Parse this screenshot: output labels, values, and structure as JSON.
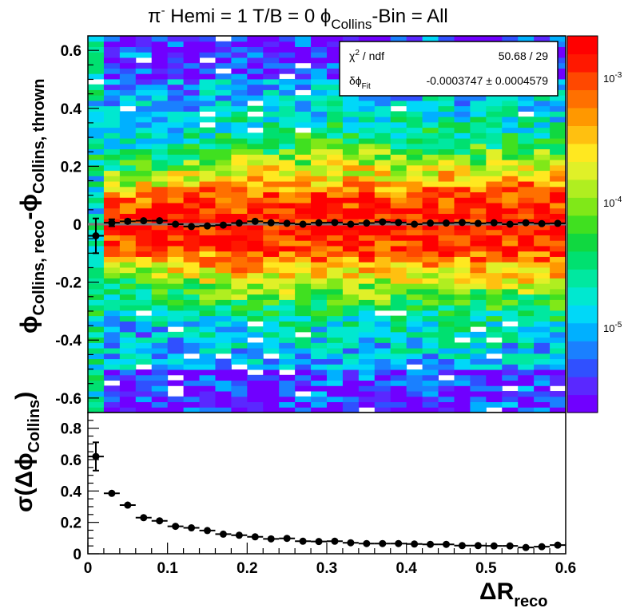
{
  "title": {
    "particle": "π",
    "charge": "-",
    "rest": " Hemi = 1 T/B = 0 ",
    "phi": "ϕ",
    "phi_sub": "Collins",
    "tail": "-Bin = All"
  },
  "stats_box": {
    "row1_label_main": "χ",
    "row1_label_sup": "2",
    "row1_label_rest": " / ndf",
    "row1_value": "50.68 / 29",
    "row2_label_main": "δϕ",
    "row2_label_sub": "Fit",
    "row2_value": "-0.0003747 ± 0.0004579"
  },
  "top_axis": {
    "y_main": "ϕ",
    "y_sub1": "Collins, reco",
    "y_mid": "-ϕ",
    "y_sub2": "Collins, thrown",
    "y_ticks": [
      "-0.6",
      "-0.4",
      "-0.2",
      "0",
      "0.2",
      "0.4",
      "0.6"
    ]
  },
  "bottom_axis": {
    "y_label_a": "σ(Δϕ",
    "y_label_sub": "Collins",
    "y_label_b": ")",
    "y_ticks": [
      "0",
      "0.2",
      "0.4",
      "0.6",
      "0.8"
    ],
    "x_ticks": [
      "0",
      "0.1",
      "0.2",
      "0.3",
      "0.4",
      "0.5",
      "0.6"
    ],
    "x_label_main": "ΔR",
    "x_label_sub": "reco"
  },
  "colorbar": {
    "scale": "log",
    "labels": [
      {
        "base": "10",
        "exp": "-3",
        "value": 0.001
      },
      {
        "base": "10",
        "exp": "-4",
        "value": 0.0001
      },
      {
        "base": "10",
        "exp": "-5",
        "value": 1e-05
      }
    ],
    "colors": [
      "#7000ff",
      "#5a28ff",
      "#3050ff",
      "#1a80ff",
      "#00b0ff",
      "#00d8f8",
      "#00e8d0",
      "#00e8a0",
      "#00e070",
      "#10d840",
      "#40e020",
      "#80e818",
      "#b0ee20",
      "#e0f028",
      "#ffe820",
      "#ffc010",
      "#ff9800",
      "#ff7000",
      "#ff4800",
      "#ff1800",
      "#ff0000"
    ]
  },
  "chart_data": [
    {
      "type": "heatmap",
      "x_range": [
        0,
        0.6
      ],
      "y_range": [
        -0.65,
        0.65
      ],
      "z_scale": "log",
      "fit_line_y": 0,
      "profile_points": {
        "x": [
          0.01,
          0.03,
          0.05,
          0.07,
          0.09,
          0.11,
          0.13,
          0.15,
          0.17,
          0.19,
          0.21,
          0.23,
          0.25,
          0.27,
          0.29,
          0.31,
          0.33,
          0.35,
          0.37,
          0.39,
          0.41,
          0.43,
          0.45,
          0.47,
          0.49,
          0.51,
          0.53,
          0.55,
          0.57,
          0.59
        ],
        "y": [
          -0.04,
          0.005,
          0.01,
          0.012,
          0.012,
          0.0,
          -0.008,
          -0.006,
          -0.003,
          0.004,
          0.01,
          0.005,
          0.003,
          0.0,
          0.005,
          0.006,
          0.0,
          0.004,
          0.008,
          0.006,
          0.0,
          0.004,
          0.004,
          0.006,
          0.003,
          0.005,
          0.0,
          0.005,
          0.002,
          0.003
        ],
        "y_err": [
          0.06,
          0.012,
          0.006,
          0.004,
          0.004,
          0.003,
          0.003,
          0.003,
          0.003,
          0.003,
          0.003,
          0.003,
          0.003,
          0.003,
          0.003,
          0.003,
          0.003,
          0.003,
          0.003,
          0.003,
          0.003,
          0.003,
          0.003,
          0.003,
          0.003,
          0.003,
          0.003,
          0.003,
          0.003,
          0.003
        ],
        "x_err": 0.01
      }
    },
    {
      "type": "scatter",
      "x_range": [
        0,
        0.6
      ],
      "y_range": [
        0,
        0.9
      ],
      "points": {
        "x": [
          0.01,
          0.03,
          0.05,
          0.07,
          0.09,
          0.11,
          0.13,
          0.15,
          0.17,
          0.19,
          0.21,
          0.23,
          0.25,
          0.27,
          0.29,
          0.31,
          0.33,
          0.35,
          0.37,
          0.39,
          0.41,
          0.43,
          0.45,
          0.47,
          0.49,
          0.51,
          0.53,
          0.55,
          0.57,
          0.59
        ],
        "y": [
          0.62,
          0.385,
          0.31,
          0.23,
          0.21,
          0.175,
          0.165,
          0.148,
          0.125,
          0.118,
          0.108,
          0.095,
          0.098,
          0.08,
          0.078,
          0.08,
          0.07,
          0.065,
          0.065,
          0.065,
          0.062,
          0.06,
          0.06,
          0.052,
          0.052,
          0.05,
          0.05,
          0.04,
          0.045,
          0.055
        ],
        "y_err": [
          0.09,
          0.015,
          0.012,
          0.01,
          0.008,
          0.007,
          0.006,
          0.006,
          0.005,
          0.005,
          0.005,
          0.005,
          0.005,
          0.005,
          0.005,
          0.005,
          0.005,
          0.005,
          0.005,
          0.005,
          0.005,
          0.005,
          0.005,
          0.005,
          0.005,
          0.005,
          0.005,
          0.005,
          0.005,
          0.005
        ],
        "x_err": 0.01
      }
    }
  ]
}
